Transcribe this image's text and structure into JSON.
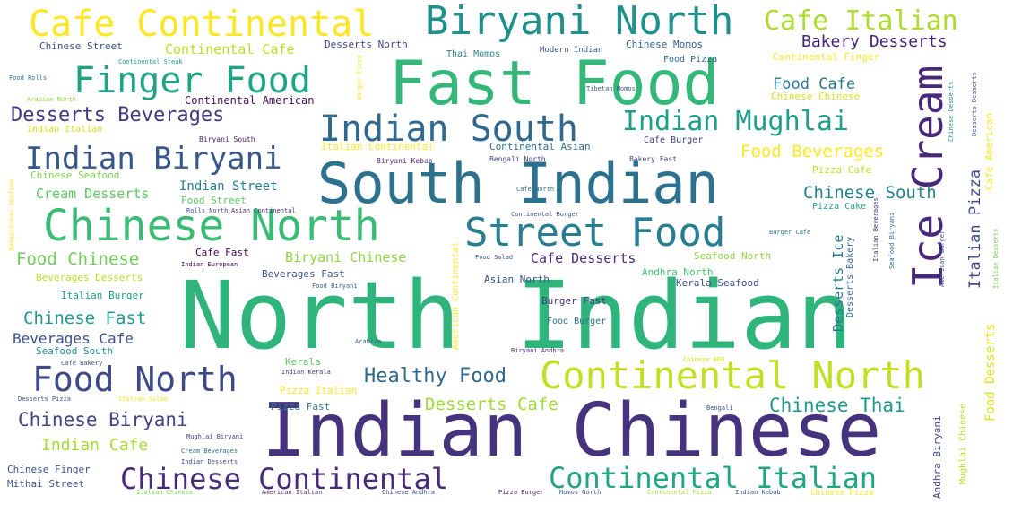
{
  "words": [
    {
      "text": "North Indian",
      "color": "#2fb47c"
    },
    {
      "text": "Indian Chinese",
      "color": "#46337e"
    },
    {
      "text": "Fast Food",
      "color": "#35b779"
    },
    {
      "text": "South Indian",
      "color": "#2c728e"
    },
    {
      "text": "Chinese North",
      "color": "#3bbb75"
    },
    {
      "text": "Cafe Continental",
      "color": "#fde725"
    },
    {
      "text": "Biryani North",
      "color": "#21908d"
    },
    {
      "text": "Street Food",
      "color": "#287d8e"
    },
    {
      "text": "Continental North",
      "color": "#c2df23"
    },
    {
      "text": "Indian South",
      "color": "#31688e"
    },
    {
      "text": "Finger Food",
      "color": "#20a486"
    },
    {
      "text": "Indian Biryani",
      "color": "#38588c"
    },
    {
      "text": "Ice Cream",
      "color": "#482878"
    },
    {
      "text": "Food North",
      "color": "#3e4989"
    },
    {
      "text": "Continental Italian",
      "color": "#22a785"
    },
    {
      "text": "Chinese Continental",
      "color": "#472c7a"
    },
    {
      "text": "Indian Mughlai",
      "color": "#1f9e89"
    },
    {
      "text": "Cafe Italian",
      "color": "#addc30"
    },
    {
      "text": "Desserts Beverages",
      "color": "#443a83"
    },
    {
      "text": "Healthy Food",
      "color": "#31688e"
    },
    {
      "text": "Chinese Biryani",
      "color": "#414487"
    },
    {
      "text": "Food Beverages",
      "color": "#fde725"
    },
    {
      "text": "Chinese South",
      "color": "#25858e"
    },
    {
      "text": "Chinese Thai",
      "color": "#1f988b"
    },
    {
      "text": "Desserts Cafe",
      "color": "#a0da39"
    },
    {
      "text": "Chinese Fast",
      "color": "#1f988b"
    },
    {
      "text": "Food Chinese",
      "color": "#6ece58"
    },
    {
      "text": "Indian Cafe",
      "color": "#a8db34"
    },
    {
      "text": "Bakery Desserts",
      "color": "#482475"
    },
    {
      "text": "Food Cafe",
      "color": "#2a788e"
    },
    {
      "text": "Beverages Cafe",
      "color": "#3b528b"
    },
    {
      "text": "Cream Desserts",
      "color": "#5ec962"
    },
    {
      "text": "Indian Street",
      "color": "#277f8e"
    },
    {
      "text": "Continental Cafe",
      "color": "#bddf26"
    },
    {
      "text": "Biryani Chinese",
      "color": "#90d743"
    },
    {
      "text": "Cafe Desserts",
      "color": "#472d7b"
    },
    {
      "text": "Italian Pizza",
      "color": "#3e4c8a"
    },
    {
      "text": "Food Desserts",
      "color": "#dde318"
    },
    {
      "text": "Desserts Ice",
      "color": "#2a788e"
    },
    {
      "text": "Chinese Street",
      "color": "#3b528b"
    },
    {
      "text": "Desserts North",
      "color": "#3f4788"
    },
    {
      "text": "Chinese Momos",
      "color": "#355f8d"
    },
    {
      "text": "Thai Momos",
      "color": "#26828e"
    },
    {
      "text": "Modern Indian",
      "color": "#3b528b"
    },
    {
      "text": "Food Pizza",
      "color": "#31688e"
    },
    {
      "text": "Continental Finger",
      "color": "#fde725"
    },
    {
      "text": "Chinese Chinese",
      "color": "#d8e219"
    },
    {
      "text": "Continental American",
      "color": "#471063"
    },
    {
      "text": "Indian Italian",
      "color": "#d0e11c"
    },
    {
      "text": "Italian Continental",
      "color": "#fde725"
    },
    {
      "text": "Continental Asian",
      "color": "#2e6e8e"
    },
    {
      "text": "Cafe Burger",
      "color": "#3f4788"
    },
    {
      "text": "Bengali North",
      "color": "#414487"
    },
    {
      "text": "Biryani South",
      "color": "#482475"
    },
    {
      "text": "Biryani Kebab",
      "color": "#482878"
    },
    {
      "text": "Bakery Fast",
      "color": "#433e85"
    },
    {
      "text": "Pizza Cafe",
      "color": "#c2df23"
    },
    {
      "text": "Chinese Seafood",
      "color": "#7ad151"
    },
    {
      "text": "Food Street",
      "color": "#5ec962"
    },
    {
      "text": "Rolls North",
      "color": "#3e4a89"
    },
    {
      "text": "Asian Continental",
      "color": "#482777"
    },
    {
      "text": "Cafe North",
      "color": "#2e6e8e"
    },
    {
      "text": "Continental Burger",
      "color": "#3b528b"
    },
    {
      "text": "Burger Cafe",
      "color": "#287d8e"
    },
    {
      "text": "Italian Burger",
      "color": "#1f9e89"
    },
    {
      "text": "Beverages Desserts",
      "color": "#b5de2b"
    },
    {
      "text": "Beverages Fast",
      "color": "#3b528b"
    },
    {
      "text": "Cafe Fast",
      "color": "#440154"
    },
    {
      "text": "Indian European",
      "color": "#450559"
    },
    {
      "text": "Food Rolls",
      "color": "#2c728e"
    },
    {
      "text": "Arabian North",
      "color": "#93d741"
    },
    {
      "text": "Tibetan Momos",
      "color": "#38598c"
    },
    {
      "text": "Continental Steak",
      "color": "#1f9e89"
    },
    {
      "text": "Burger Pizza",
      "color": "#fde725"
    },
    {
      "text": "Food Salad",
      "color": "#3b528b"
    },
    {
      "text": "Andhra North",
      "color": "#44bf70"
    },
    {
      "text": "Seafood North",
      "color": "#90d743"
    },
    {
      "text": "Kerala Seafood",
      "color": "#3e4c8a"
    },
    {
      "text": "Asian North",
      "color": "#3b528b"
    },
    {
      "text": "Burger Fast",
      "color": "#46337e"
    },
    {
      "text": "Food Burger",
      "color": "#2c728e"
    },
    {
      "text": "Food Biryani",
      "color": "#33638d"
    },
    {
      "text": "Seafood South",
      "color": "#21918c"
    },
    {
      "text": "American Continental",
      "color": "#fde725"
    },
    {
      "text": "Arabian",
      "color": "#31688e"
    },
    {
      "text": "Biryani Andhra",
      "color": "#472d7b"
    },
    {
      "text": "Chinese BBQ",
      "color": "#d2e21b"
    },
    {
      "text": "Kerala",
      "color": "#5ec962"
    },
    {
      "text": "Indian Kerala",
      "color": "#443983"
    },
    {
      "text": "Cafe Bakery",
      "color": "#3b528b"
    },
    {
      "text": "Pizza Italian",
      "color": "#fde725"
    },
    {
      "text": "Pizza Fast",
      "color": "#2a788e"
    },
    {
      "text": "Desserts Pizza",
      "color": "#39558c"
    },
    {
      "text": "Italian Salad",
      "color": "#fde725"
    },
    {
      "text": "Bengali",
      "color": "#3b528b"
    },
    {
      "text": "Mughlai Biryani",
      "color": "#414487"
    },
    {
      "text": "Cream Beverages",
      "color": "#2e6e8e"
    },
    {
      "text": "Indian Desserts",
      "color": "#404588"
    },
    {
      "text": "Chinese Finger",
      "color": "#3a548c"
    },
    {
      "text": "Mithai Street",
      "color": "#3b528b"
    },
    {
      "text": "Italian Chinese",
      "color": "#7ad151"
    },
    {
      "text": "American Italian",
      "color": "#46337e"
    },
    {
      "text": "Chinese Andhra",
      "color": "#3e4989"
    },
    {
      "text": "Pizza Burger",
      "color": "#482878"
    },
    {
      "text": "Momos North",
      "color": "#3b528b"
    },
    {
      "text": "Continental Pizza",
      "color": "#a8db34"
    },
    {
      "text": "Indian Kebab",
      "color": "#3b528b"
    },
    {
      "text": "Chinese Pizza",
      "color": "#fde725"
    },
    {
      "text": "Pizza Cake",
      "color": "#1fa187"
    },
    {
      "text": "Cafe American",
      "color": "#fde725"
    },
    {
      "text": "Italian Beverages",
      "color": "#443983"
    },
    {
      "text": "Seafood Biryani",
      "color": "#2c728e"
    },
    {
      "text": "American Burger",
      "color": "#3b528b"
    },
    {
      "text": "Italian Desserts",
      "color": "#7ad151"
    },
    {
      "text": "Mughlai Chinese",
      "color": "#b5de2b"
    },
    {
      "text": "Andhra Biryani",
      "color": "#3f4788"
    },
    {
      "text": "Desserts Bakery",
      "color": "#31688e"
    },
    {
      "text": "Chinese Desserts",
      "color": "#21918c"
    },
    {
      "text": "Bangalorean Seafood",
      "color": "#fde725"
    },
    {
      "text": "Desserts Desserts",
      "color": "#3b528b"
    }
  ]
}
